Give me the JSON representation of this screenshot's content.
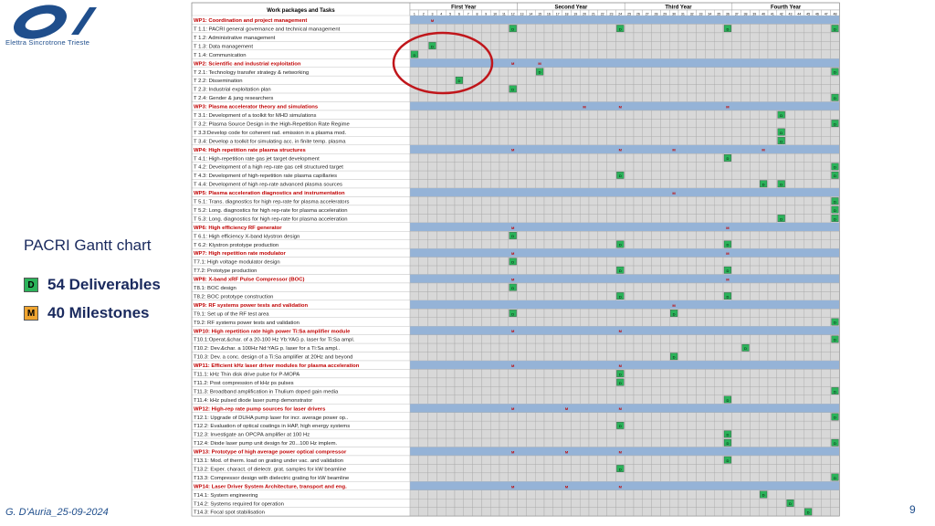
{
  "logo": {
    "org": "Elettra Sincrotrone Trieste"
  },
  "slide": {
    "title": "PACRI Gantt chart"
  },
  "legend": {
    "deliverable": {
      "code": "D",
      "text": "54 Deliverables",
      "color": "#2bb35a"
    },
    "milestone": {
      "code": "M",
      "text": "40 Milestones",
      "color": "#f0a530"
    }
  },
  "footer": {
    "author": "G. D'Auria_25-09-2024",
    "page": "9"
  },
  "colors": {
    "wp_bar": "#95b3d7",
    "task_cell": "#d8d8d8",
    "wp_text": "#c00000",
    "deliverable": "#2bb35a",
    "milestone": "#f0a530",
    "circle": "#c0161b"
  },
  "chart_data": {
    "type": "table",
    "header_label": "Work packages and Tasks",
    "years": [
      "First Year",
      "Second Year",
      "Third Year",
      "Fourth Year"
    ],
    "months": [
      1,
      2,
      3,
      4,
      5,
      6,
      7,
      8,
      9,
      10,
      11,
      12,
      13,
      14,
      15,
      16,
      17,
      18,
      19,
      20,
      21,
      22,
      23,
      24,
      25,
      26,
      27,
      28,
      29,
      30,
      31,
      32,
      33,
      34,
      35,
      36,
      37,
      38,
      39,
      40,
      41,
      42,
      43,
      44,
      45,
      46,
      47,
      48
    ],
    "rows": [
      {
        "label": "WP1: Coordination and project management",
        "wp": true,
        "m": [
          3
        ],
        "d": []
      },
      {
        "label": "T 1.1: PACRI general governance and technical management",
        "wp": false,
        "m": [],
        "d": [
          12,
          24,
          36,
          48
        ]
      },
      {
        "label": "T 1.2: Administrative management",
        "wp": false,
        "m": [],
        "d": []
      },
      {
        "label": "T 1.3: Data management",
        "wp": false,
        "m": [],
        "d": [
          3
        ]
      },
      {
        "label": "T 1.4: Communication",
        "wp": false,
        "m": [],
        "d": [
          1
        ]
      },
      {
        "label": "WP2: Scientific and industrial exploitation",
        "wp": true,
        "m": [
          12,
          15
        ],
        "d": []
      },
      {
        "label": "T 2.1: Technology transfer strategy & networking",
        "wp": false,
        "m": [],
        "d": [
          15,
          48
        ]
      },
      {
        "label": "T 2.2: Dissemination",
        "wp": false,
        "m": [],
        "d": [
          6
        ]
      },
      {
        "label": "T 2.3: Industrial exploitation plan",
        "wp": false,
        "m": [],
        "d": [
          12
        ]
      },
      {
        "label": "T 2.4: Gender & jung researchers",
        "wp": false,
        "m": [],
        "d": [
          48
        ]
      },
      {
        "label": "WP3: Plasma accelerator theory and simulations",
        "wp": true,
        "m": [
          20,
          24,
          36
        ],
        "d": []
      },
      {
        "label": "T 3.1: Development of a toolkit for MHD simulations",
        "wp": false,
        "m": [],
        "d": [
          42
        ]
      },
      {
        "label": "T 3.2: Plasma Source Design in the High-Repetition Rate Regime",
        "wp": false,
        "m": [],
        "d": [
          48
        ]
      },
      {
        "label": "T 3.3:Develop code for coherent rad. emission in a plasma mod.",
        "wp": false,
        "m": [],
        "d": [
          42
        ]
      },
      {
        "label": "T 3.4: Develop a toolkit for simulating acc. in finite temp. plasma",
        "wp": false,
        "m": [],
        "d": [
          42
        ]
      },
      {
        "label": "WP4: High repetition rate plasma structures",
        "wp": true,
        "m": [
          12,
          24,
          30,
          40
        ],
        "d": []
      },
      {
        "label": "T 4.1: High-repetition rate gas jet target development",
        "wp": false,
        "m": [],
        "d": [
          36
        ]
      },
      {
        "label": "T 4.2: Development of a high rep-rate gas cell structured target",
        "wp": false,
        "m": [],
        "d": [
          48
        ]
      },
      {
        "label": "T 4.3: Development of high-repetition rate plasma capillaries",
        "wp": false,
        "m": [],
        "d": [
          24,
          48
        ]
      },
      {
        "label": "T 4.4: Development of high rep-rate advanced plasma sources",
        "wp": false,
        "m": [],
        "d": [
          40,
          42
        ]
      },
      {
        "label": "WP5: Plasma acceleration diagnostics and instrumentation",
        "wp": true,
        "m": [
          30
        ],
        "d": []
      },
      {
        "label": "T 5.1: Trans. diagnostics for high rep-rate  for plasma accelerators",
        "wp": false,
        "m": [],
        "d": [
          48
        ]
      },
      {
        "label": "T 5.2: Long. diagnostics for high rep-rate  for plasma acceleration",
        "wp": false,
        "m": [],
        "d": [
          48
        ]
      },
      {
        "label": "T 5.3: Long. diagnostics for high rep-rate  for plasma acceleration",
        "wp": false,
        "m": [],
        "d": [
          42,
          48
        ]
      },
      {
        "label": "WP6: High efficiency RF generator",
        "wp": true,
        "m": [
          12,
          36
        ],
        "d": []
      },
      {
        "label": "T 6.1: High efficiency X-band klystron design",
        "wp": false,
        "m": [],
        "d": [
          12
        ]
      },
      {
        "label": "T 6.2: Klystron prototype production",
        "wp": false,
        "m": [],
        "d": [
          24,
          36
        ]
      },
      {
        "label": "WP7: High repetition rate modulator",
        "wp": true,
        "m": [
          12,
          36
        ],
        "d": []
      },
      {
        "label": "T7.1: High voltage modulator design",
        "wp": false,
        "m": [],
        "d": [
          12
        ]
      },
      {
        "label": "T7.2: Prototype production",
        "wp": false,
        "m": [],
        "d": [
          24,
          36
        ]
      },
      {
        "label": "WP8: X-band xRF Pulse Compressor (BOC)",
        "wp": true,
        "m": [
          12,
          36
        ],
        "d": []
      },
      {
        "label": "T8.1: BOC design",
        "wp": false,
        "m": [],
        "d": [
          12
        ]
      },
      {
        "label": "T8.2: BOC prototype construction",
        "wp": false,
        "m": [],
        "d": [
          24,
          36
        ]
      },
      {
        "label": "WP9: RF systems power tests and validation",
        "wp": true,
        "m": [
          30
        ],
        "d": []
      },
      {
        "label": "T9.1: Set up of the RF test area",
        "wp": false,
        "m": [],
        "d": [
          12,
          30
        ]
      },
      {
        "label": "T9.2: RF systems power tests and validation",
        "wp": false,
        "m": [],
        "d": [
          48
        ]
      },
      {
        "label": "WP10: High repetition rate high power Ti:Sa amplifier module",
        "wp": true,
        "m": [
          12,
          24
        ],
        "d": []
      },
      {
        "label": "T10.1:Operat.&char. of a 20-100 Hz Yb:YAG p. laser for Ti:Sa ampl.",
        "wp": false,
        "m": [],
        "d": [
          48
        ]
      },
      {
        "label": "T10.2: Dev.&char. a 100Hz Nd:YAG p. laser for a Ti:Sa ampl..",
        "wp": false,
        "m": [],
        "d": [
          38
        ]
      },
      {
        "label": "T10.3: Dev. a conc. design of a Ti:Sa amplifier at 20Hz and beyond",
        "wp": false,
        "m": [],
        "d": [
          30
        ]
      },
      {
        "label": "WP11: Efficient kHz laser driver modules for plasma acceleration",
        "wp": true,
        "m": [
          12,
          24
        ],
        "d": []
      },
      {
        "label": "T11.1: kHz Thin disk drive pulse for P-MOPA",
        "wp": false,
        "m": [],
        "d": [
          24
        ]
      },
      {
        "label": "T11.2: Post compression of kHz ps pulses",
        "wp": false,
        "m": [],
        "d": [
          24
        ]
      },
      {
        "label": "T11.3: Broadband amplification in Thulium doped gain media",
        "wp": false,
        "m": [],
        "d": [
          48
        ]
      },
      {
        "label": "T11.4: kHz pulsed diode laser pump demonstrator",
        "wp": false,
        "m": [],
        "d": [
          36
        ]
      },
      {
        "label": "WP12: High-rep rate pump sources for laser drivers",
        "wp": true,
        "m": [
          12,
          18,
          24
        ],
        "d": []
      },
      {
        "label": "T12.1: Upgrade of DUHA pump laser for incr. average power op..",
        "wp": false,
        "m": [],
        "d": [
          48
        ]
      },
      {
        "label": "T12.2: Evaluation of optical coatings in HAP, high energy systems",
        "wp": false,
        "m": [],
        "d": [
          24
        ]
      },
      {
        "label": "T12.3: Investigate an OPCPA amplifier at 100 Hz",
        "wp": false,
        "m": [],
        "d": [
          36
        ]
      },
      {
        "label": "T12.4: Diode laser pump unit design for 20...100 Hz implem.",
        "wp": false,
        "m": [],
        "d": [
          36,
          48
        ]
      },
      {
        "label": "WP13: Prototype of high average power optical compressor",
        "wp": true,
        "m": [
          12,
          18,
          24
        ],
        "d": []
      },
      {
        "label": "T13.1: Mod. of therm. load on grating under vac. and validation",
        "wp": false,
        "m": [],
        "d": [
          36
        ]
      },
      {
        "label": "T13.2: Exper. charact. of dielectr. grat. samples for kW beamline",
        "wp": false,
        "m": [],
        "d": [
          24
        ]
      },
      {
        "label": "T13.3: Compressor design with dielectric grating for kW beamline",
        "wp": false,
        "m": [],
        "d": [
          48
        ]
      },
      {
        "label": "WP14: Laser Driver System Architecture, transport and eng.",
        "wp": true,
        "m": [
          12,
          18,
          24
        ],
        "d": []
      },
      {
        "label": "T14.1: System engineering",
        "wp": false,
        "m": [],
        "d": [
          40
        ]
      },
      {
        "label": "T14.2: Systems required for operation",
        "wp": false,
        "m": [],
        "d": [
          43
        ]
      },
      {
        "label": "T14.3: Focal spot stabilisation",
        "wp": false,
        "m": [],
        "d": [
          45
        ]
      }
    ]
  }
}
